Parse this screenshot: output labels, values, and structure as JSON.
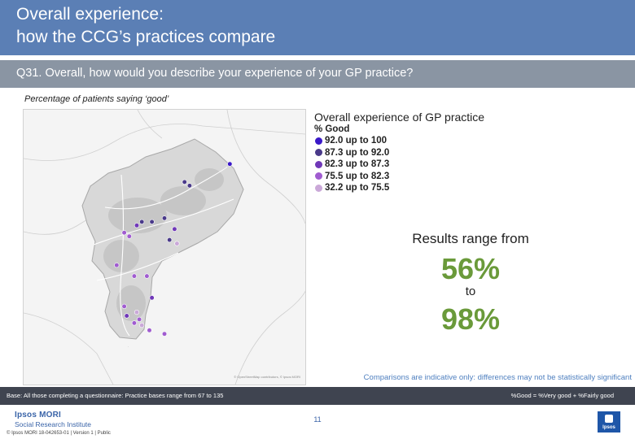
{
  "header": {
    "title_line1": "Overall experience:",
    "title_line2": "how the CCG’s practices compare"
  },
  "question": "Q31. Overall, how would you describe your experience of your GP practice?",
  "subtitle": "Percentage of patients saying ‘good’",
  "map": {
    "credit": "© OpenStreetMap contributors, © Ipsos MORI",
    "practices": [
      {
        "band": 1,
        "lon": -2.1,
        "lat": 53.56
      },
      {
        "band": 1,
        "lon": -2.09,
        "lat": 53.555
      },
      {
        "band": 0,
        "lon": -2.01,
        "lat": 53.585
      },
      {
        "band": 1,
        "lon": -2.185,
        "lat": 53.505
      },
      {
        "band": 2,
        "lon": -2.195,
        "lat": 53.5
      },
      {
        "band": 1,
        "lon": -2.165,
        "lat": 53.505
      },
      {
        "band": 1,
        "lon": -2.14,
        "lat": 53.51
      },
      {
        "band": 3,
        "lon": -2.21,
        "lat": 53.485
      },
      {
        "band": 1,
        "lon": -2.13,
        "lat": 53.48
      },
      {
        "band": 4,
        "lon": -2.115,
        "lat": 53.475
      },
      {
        "band": 2,
        "lon": -2.12,
        "lat": 53.495
      },
      {
        "band": 3,
        "lon": -2.22,
        "lat": 53.49
      },
      {
        "band": 3,
        "lon": -2.235,
        "lat": 53.445
      },
      {
        "band": 3,
        "lon": -2.2,
        "lat": 53.43
      },
      {
        "band": 3,
        "lon": -2.175,
        "lat": 53.43
      },
      {
        "band": 2,
        "lon": -2.165,
        "lat": 53.4
      },
      {
        "band": 3,
        "lon": -2.22,
        "lat": 53.388
      },
      {
        "band": 2,
        "lon": -2.215,
        "lat": 53.375
      },
      {
        "band": 4,
        "lon": -2.195,
        "lat": 53.38
      },
      {
        "band": 3,
        "lon": -2.2,
        "lat": 53.365
      },
      {
        "band": 3,
        "lon": -2.19,
        "lat": 53.37
      },
      {
        "band": 4,
        "lon": -2.185,
        "lat": 53.362
      },
      {
        "band": 3,
        "lon": -2.14,
        "lat": 53.35
      },
      {
        "band": 3,
        "lon": -2.17,
        "lat": 53.355
      }
    ]
  },
  "legend": {
    "title": "Overall experience of GP practice",
    "subtitle": "% Good",
    "items": [
      {
        "label": "92.0 up to 100",
        "color": "#3a18c8"
      },
      {
        "label": "87.3 up to 92.0",
        "color": "#4a3a8a"
      },
      {
        "label": "82.3 up to 87.3",
        "color": "#7038b8"
      },
      {
        "label": "75.5 up to 82.3",
        "color": "#a05cd0"
      },
      {
        "label": "32.2 up to 75.5",
        "color": "#caa8d8"
      }
    ]
  },
  "results": {
    "label": "Results range from",
    "low": "56%",
    "to": "to",
    "high": "98%"
  },
  "comparisons_note": "Comparisons are indicative only: differences may not be statistically significant",
  "base_text": "Base: All those completing a questionnaire: Practice bases range from 67 to 135",
  "good_definition": "%Good = %Very good + %Fairly good",
  "footer": {
    "logo_name": "Ipsos MORI",
    "logo_subtitle": "Social Research Institute",
    "copyright": "© Ipsos MORI     18-042653-01 | Version 1 | Public",
    "page_number": "11",
    "logo_box_text": "Ipsos"
  }
}
